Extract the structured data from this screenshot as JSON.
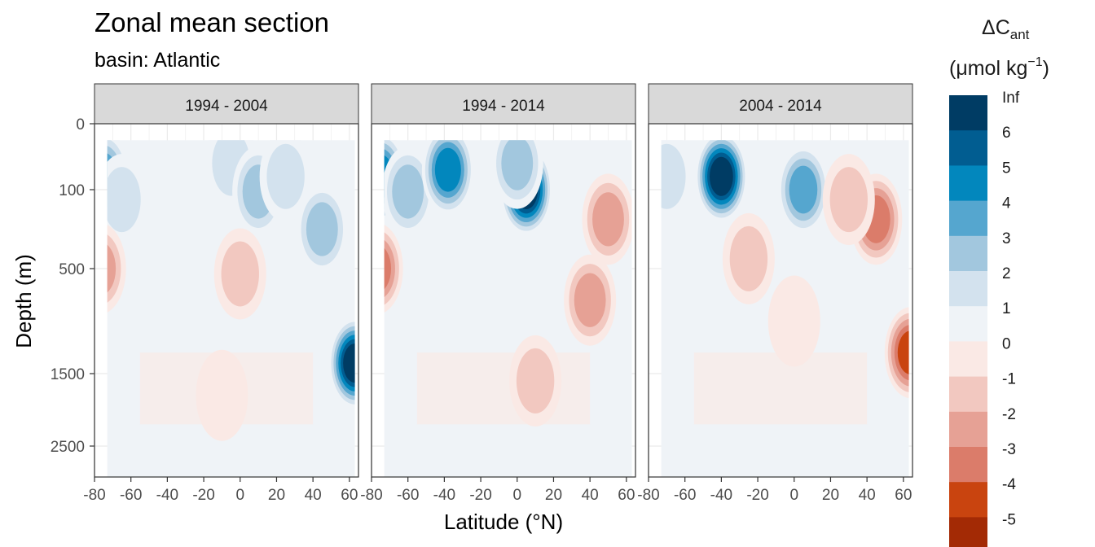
{
  "chart_data": {
    "type": "heatmap",
    "title": "Zonal mean section",
    "subtitle": "basin: Atlantic",
    "xlabel": "Latitude (°N)",
    "ylabel": "Depth (m)",
    "x_ticks": [
      "-80",
      "-60",
      "-40",
      "-20",
      "0",
      "20",
      "40",
      "60"
    ],
    "y_ticks": [
      "0",
      "100",
      "500",
      "1500",
      "2500"
    ],
    "xlim": [
      -80,
      65
    ],
    "depth_ticks_m": [
      0,
      100,
      500,
      1500,
      2500
    ],
    "grid": true,
    "legend_position": "right",
    "legend": {
      "title_main": "ΔC",
      "title_sub": "ant",
      "unit_main": "(μmol kg",
      "unit_sup": "−1",
      "unit_close": ")",
      "labels": [
        "Inf",
        "6",
        "5",
        "4",
        "3",
        "2",
        "1",
        "0",
        "-1",
        "-2",
        "-3",
        "-4",
        "-5"
      ],
      "colors": [
        "#003c64",
        "#015d91",
        "#0287bd",
        "#55a6cf",
        "#a2c7de",
        "#d3e2ee",
        "#eff3f7",
        "#fae9e5",
        "#f2c8c0",
        "#e6a195",
        "#db7c6a",
        "#c9440f",
        "#a32a05"
      ]
    },
    "panels": [
      {
        "label": "1994 - 2004",
        "fields": [
          {
            "lat": -75,
            "depth": 80,
            "value": 3.2
          },
          {
            "lat": -65,
            "depth": 150,
            "value": 2.0
          },
          {
            "lat": -5,
            "depth": 60,
            "value": 2.0
          },
          {
            "lat": 10,
            "depth": 110,
            "value": 2.5
          },
          {
            "lat": 25,
            "depth": 80,
            "value": 2.0
          },
          {
            "lat": 45,
            "depth": 300,
            "value": 2.2
          },
          {
            "lat": 0,
            "depth": 550,
            "value": -1.4
          },
          {
            "lat": -10,
            "depth": 1800,
            "value": -0.5
          },
          {
            "lat": -77,
            "depth": 500,
            "value": -2.5
          },
          {
            "lat": 63,
            "depth": 1400,
            "value": 6.5
          }
        ]
      },
      {
        "label": "1994 - 2014",
        "fields": [
          {
            "lat": -75,
            "depth": 80,
            "value": 4.5
          },
          {
            "lat": -60,
            "depth": 110,
            "value": 3.0
          },
          {
            "lat": -38,
            "depth": 70,
            "value": 5.0
          },
          {
            "lat": 5,
            "depth": 100,
            "value": 6.5
          },
          {
            "lat": 0,
            "depth": 60,
            "value": 3.0
          },
          {
            "lat": 50,
            "depth": 250,
            "value": -2.5
          },
          {
            "lat": 40,
            "depth": 800,
            "value": -2.5
          },
          {
            "lat": 10,
            "depth": 1600,
            "value": -1.2
          },
          {
            "lat": -77,
            "depth": 500,
            "value": -4.0
          }
        ]
      },
      {
        "label": "2004 - 2014",
        "fields": [
          {
            "lat": -40,
            "depth": 80,
            "value": 6.5
          },
          {
            "lat": 5,
            "depth": 100,
            "value": 4.0
          },
          {
            "lat": -70,
            "depth": 80,
            "value": 1.5
          },
          {
            "lat": 45,
            "depth": 250,
            "value": -3.5
          },
          {
            "lat": 30,
            "depth": 150,
            "value": -2.0
          },
          {
            "lat": -25,
            "depth": 450,
            "value": -2.0
          },
          {
            "lat": 0,
            "depth": 1000,
            "value": -0.8
          },
          {
            "lat": 64,
            "depth": 1300,
            "value": -4.5
          }
        ]
      }
    ]
  }
}
